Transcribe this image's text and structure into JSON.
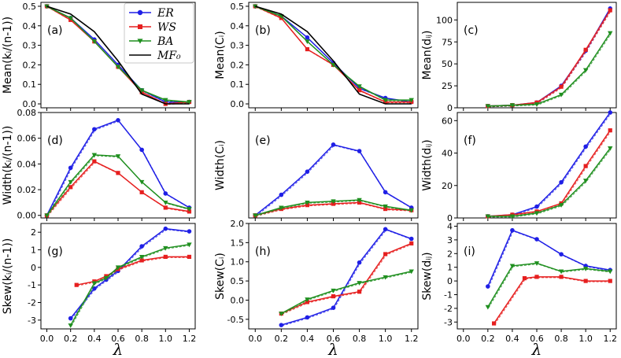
{
  "chart_data": [
    {
      "id": "a",
      "type": "line",
      "panel_label": "(a)",
      "ylabel": "Mean(kᵢ/(n-1))",
      "xlim": [
        -0.05,
        1.25
      ],
      "ylim": [
        -0.02,
        0.52
      ],
      "yticks": [
        "0.0",
        "0.1",
        "0.2",
        "0.3",
        "0.4",
        "0.5"
      ],
      "ytick_values": [
        0,
        0.1,
        0.2,
        0.3,
        0.4,
        0.5
      ],
      "x": [
        0.0,
        0.2,
        0.4,
        0.6,
        0.8,
        1.0,
        1.2
      ],
      "series": [
        {
          "name": "ER",
          "color": "#1f1fe6",
          "marker": "circle",
          "values": [
            0.5,
            0.44,
            0.33,
            0.2,
            0.07,
            0.01,
            0.01
          ]
        },
        {
          "name": "WS",
          "color": "#e61f1f",
          "marker": "square",
          "values": [
            0.5,
            0.43,
            0.32,
            0.19,
            0.06,
            0.0,
            0.01
          ]
        },
        {
          "name": "BA",
          "color": "#1f8f1f",
          "marker": "triangle",
          "values": [
            0.5,
            0.44,
            0.32,
            0.19,
            0.07,
            0.02,
            0.01
          ]
        },
        {
          "name": "MF₀",
          "color": "#000000",
          "marker": "none",
          "values": [
            0.5,
            0.46,
            0.37,
            0.22,
            0.05,
            0.0,
            0.0
          ]
        }
      ]
    },
    {
      "id": "b",
      "type": "line",
      "panel_label": "(b)",
      "ylabel": "Mean(Cᵢ)",
      "xlim": [
        -0.05,
        1.25
      ],
      "ylim": [
        -0.02,
        0.52
      ],
      "yticks": [
        "0.0",
        "0.1",
        "0.2",
        "0.3",
        "0.4",
        "0.5"
      ],
      "ytick_values": [
        0,
        0.1,
        0.2,
        0.3,
        0.4,
        0.5
      ],
      "x": [
        0.0,
        0.2,
        0.4,
        0.6,
        0.8,
        1.0,
        1.2
      ],
      "series": [
        {
          "name": "ER",
          "color": "#1f1fe6",
          "marker": "circle",
          "values": [
            0.5,
            0.45,
            0.34,
            0.21,
            0.08,
            0.03,
            0.01
          ]
        },
        {
          "name": "WS",
          "color": "#e61f1f",
          "marker": "square",
          "values": [
            0.5,
            0.44,
            0.28,
            0.2,
            0.07,
            0.01,
            0.01
          ]
        },
        {
          "name": "BA",
          "color": "#1f8f1f",
          "marker": "triangle",
          "values": [
            0.5,
            0.45,
            0.32,
            0.2,
            0.09,
            0.02,
            0.02
          ]
        },
        {
          "name": "MF₀",
          "color": "#000000",
          "marker": "none",
          "values": [
            0.5,
            0.46,
            0.37,
            0.22,
            0.05,
            0.0,
            0.0
          ]
        }
      ]
    },
    {
      "id": "c",
      "type": "line",
      "panel_label": "(c)",
      "ylabel": "Mean(dᵢⱼ)",
      "xlim": [
        -0.05,
        1.25
      ],
      "ylim": [
        0,
        120
      ],
      "yticks": [
        "0",
        "25",
        "50",
        "75",
        "100"
      ],
      "ytick_values": [
        0,
        25,
        50,
        75,
        100
      ],
      "x": [
        0.2,
        0.4,
        0.6,
        0.8,
        1.0,
        1.2
      ],
      "series": [
        {
          "name": "ER",
          "color": "#1f1fe6",
          "marker": "circle",
          "values": [
            2,
            3,
            6,
            25,
            65,
            113
          ]
        },
        {
          "name": "WS",
          "color": "#e61f1f",
          "marker": "square",
          "values": [
            2,
            3,
            6,
            24,
            66,
            111
          ]
        },
        {
          "name": "BA",
          "color": "#1f8f1f",
          "marker": "triangle",
          "values": [
            2,
            3,
            4,
            15,
            43,
            85
          ]
        }
      ]
    },
    {
      "id": "d",
      "type": "line",
      "panel_label": "(d)",
      "ylabel": "Width(kᵢ/(n-1))",
      "xlim": [
        -0.05,
        1.25
      ],
      "ylim": [
        -0.002,
        0.08
      ],
      "yticks": [
        "0.00",
        "0.02",
        "0.04",
        "0.06",
        "0.08"
      ],
      "ytick_values": [
        0,
        0.02,
        0.04,
        0.06,
        0.08
      ],
      "x": [
        0.0,
        0.2,
        0.4,
        0.6,
        0.8,
        1.0,
        1.2
      ],
      "series": [
        {
          "name": "ER",
          "color": "#1f1fe6",
          "marker": "circle",
          "values": [
            0.0,
            0.037,
            0.067,
            0.074,
            0.051,
            0.017,
            0.006
          ]
        },
        {
          "name": "WS",
          "color": "#e61f1f",
          "marker": "square",
          "values": [
            0.0,
            0.022,
            0.042,
            0.033,
            0.018,
            0.006,
            0.003
          ]
        },
        {
          "name": "BA",
          "color": "#1f8f1f",
          "marker": "triangle",
          "values": [
            0.0,
            0.026,
            0.047,
            0.046,
            0.026,
            0.01,
            0.005
          ]
        }
      ]
    },
    {
      "id": "e",
      "type": "line",
      "panel_label": "(e)",
      "ylabel": "Width(Cᵢ)",
      "xlim": [
        -0.05,
        1.25
      ],
      "ylim": [
        -0.002,
        0.08
      ],
      "yticks": [],
      "ytick_values": [],
      "x": [
        0.0,
        0.2,
        0.4,
        0.6,
        0.8,
        1.0,
        1.2
      ],
      "series": [
        {
          "name": "ER",
          "color": "#1f1fe6",
          "marker": "circle",
          "values": [
            0.0,
            0.016,
            0.034,
            0.055,
            0.05,
            0.018,
            0.006
          ]
        },
        {
          "name": "WS",
          "color": "#e61f1f",
          "marker": "square",
          "values": [
            0.0,
            0.005,
            0.008,
            0.009,
            0.01,
            0.005,
            0.004
          ]
        },
        {
          "name": "BA",
          "color": "#1f8f1f",
          "marker": "triangle",
          "values": [
            0.0,
            0.006,
            0.01,
            0.011,
            0.012,
            0.007,
            0.004
          ]
        }
      ]
    },
    {
      "id": "f",
      "type": "line",
      "panel_label": "(f)",
      "ylabel": "Width(dᵢⱼ)",
      "xlim": [
        -0.05,
        1.25
      ],
      "ylim": [
        0,
        65
      ],
      "yticks": [
        "0",
        "20",
        "40",
        "60"
      ],
      "ytick_values": [
        0,
        20,
        40,
        60
      ],
      "x": [
        0.2,
        0.4,
        0.6,
        0.8,
        1.0,
        1.2
      ],
      "series": [
        {
          "name": "ER",
          "color": "#1f1fe6",
          "marker": "circle",
          "values": [
            1,
            2,
            7,
            22,
            44,
            65
          ]
        },
        {
          "name": "WS",
          "color": "#e61f1f",
          "marker": "square",
          "values": [
            1,
            2,
            4,
            9,
            32,
            54
          ]
        },
        {
          "name": "BA",
          "color": "#1f8f1f",
          "marker": "triangle",
          "values": [
            1,
            1,
            3,
            8,
            23,
            43
          ]
        }
      ]
    },
    {
      "id": "g",
      "type": "line",
      "panel_label": "(g)",
      "ylabel": "Skew(kᵢ/(n-1))",
      "xlim": [
        -0.05,
        1.25
      ],
      "ylim": [
        -3.5,
        2.5
      ],
      "yticks": [
        "-3",
        "-2",
        "-1",
        "0",
        "1",
        "2"
      ],
      "ytick_values": [
        -3,
        -2,
        -1,
        0,
        1,
        2
      ],
      "x": [
        0.2,
        0.25,
        0.4,
        0.5,
        0.6,
        0.8,
        1.0,
        1.2
      ],
      "series": [
        {
          "name": "ER",
          "color": "#1f1fe6",
          "marker": "circle",
          "values": [
            -2.9,
            null,
            -1.2,
            -0.7,
            -0.2,
            1.2,
            2.2,
            2.05
          ]
        },
        {
          "name": "WS",
          "color": "#e61f1f",
          "marker": "square",
          "values": [
            null,
            -1.0,
            -0.8,
            -0.5,
            -0.1,
            0.4,
            0.6,
            0.6
          ]
        },
        {
          "name": "BA",
          "color": "#1f8f1f",
          "marker": "triangle",
          "values": [
            -3.3,
            null,
            -0.9,
            -0.6,
            0.0,
            0.6,
            1.1,
            1.3
          ]
        }
      ]
    },
    {
      "id": "h",
      "type": "line",
      "panel_label": "(h)",
      "ylabel": "Skew(Cᵢ)",
      "xlim": [
        -0.05,
        1.25
      ],
      "ylim": [
        -0.75,
        2.0
      ],
      "yticks": [
        "-0.5",
        "0.0",
        "0.5",
        "1.0",
        "1.5",
        "2.0"
      ],
      "ytick_values": [
        -0.5,
        0,
        0.5,
        1.0,
        1.5,
        2.0
      ],
      "x": [
        0.2,
        0.4,
        0.6,
        0.8,
        1.0,
        1.2
      ],
      "series": [
        {
          "name": "ER",
          "color": "#1f1fe6",
          "marker": "circle",
          "values": [
            -0.65,
            -0.45,
            -0.2,
            0.98,
            1.85,
            1.6
          ]
        },
        {
          "name": "WS",
          "color": "#e61f1f",
          "marker": "square",
          "values": [
            -0.35,
            -0.05,
            0.1,
            0.22,
            1.2,
            1.48
          ]
        },
        {
          "name": "BA",
          "color": "#1f8f1f",
          "marker": "triangle",
          "values": [
            -0.35,
            0.02,
            0.25,
            0.45,
            0.6,
            0.75
          ]
        }
      ]
    },
    {
      "id": "i",
      "type": "line",
      "panel_label": "(i)",
      "ylabel": "Skew(dᵢⱼ)",
      "xlim": [
        -0.05,
        1.25
      ],
      "ylim": [
        -3.5,
        4.2
      ],
      "yticks": [
        "-3",
        "-2",
        "-1",
        "0",
        "1",
        "2",
        "3",
        "4"
      ],
      "ytick_values": [
        -3,
        -2,
        -1,
        0,
        1,
        2,
        3,
        4
      ],
      "x": [
        0.2,
        0.25,
        0.4,
        0.5,
        0.6,
        0.8,
        1.0,
        1.2
      ],
      "series": [
        {
          "name": "ER",
          "color": "#1f1fe6",
          "marker": "circle",
          "values": [
            -0.4,
            null,
            3.7,
            null,
            3.05,
            1.95,
            1.1,
            0.8
          ]
        },
        {
          "name": "WS",
          "color": "#e61f1f",
          "marker": "square",
          "values": [
            null,
            -3.1,
            null,
            0.2,
            0.3,
            0.3,
            0.0,
            0.0
          ]
        },
        {
          "name": "BA",
          "color": "#1f8f1f",
          "marker": "triangle",
          "values": [
            -1.9,
            null,
            1.1,
            null,
            1.3,
            0.7,
            0.9,
            0.7
          ]
        }
      ]
    }
  ],
  "xaxis": {
    "label": "λ",
    "ticks": [
      "0.0",
      "0.2",
      "0.4",
      "0.6",
      "0.8",
      "1.0",
      "1.2"
    ],
    "tick_values": [
      0,
      0.2,
      0.4,
      0.6,
      0.8,
      1.0,
      1.2
    ]
  },
  "legend": {
    "placement": "panel (a) top-right",
    "entries": [
      "ER",
      "WS",
      "BA",
      "MF₀"
    ]
  }
}
